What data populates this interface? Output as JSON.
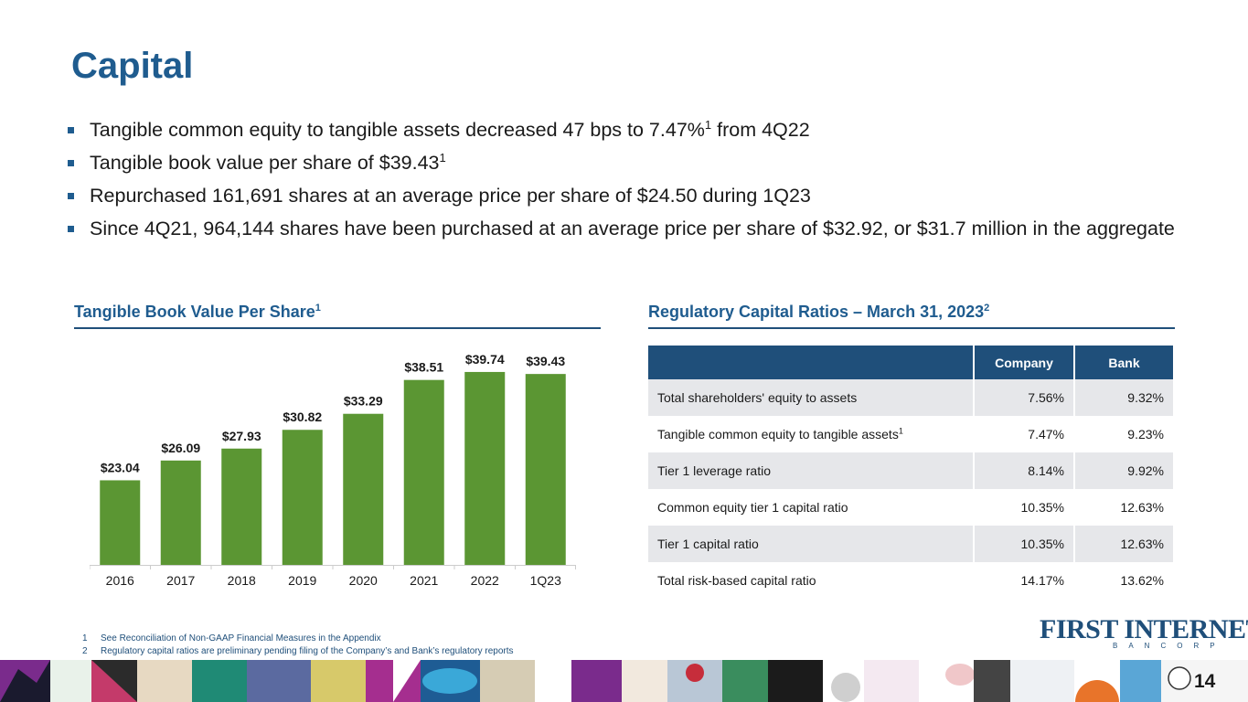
{
  "title": "Capital",
  "bullets": [
    {
      "text": "Tangible common equity to tangible assets decreased 47 bps to 7.47%",
      "sup": "1",
      "after": " from 4Q22"
    },
    {
      "text": "Tangible book value per share of $39.43",
      "sup": "1",
      "after": ""
    },
    {
      "text": "Repurchased 161,691 shares at an average price per share of $24.50 during 1Q23",
      "sup": "",
      "after": ""
    },
    {
      "text": "Since 4Q21, 964,144 shares have been purchased at an average price per share of $32.92, or $31.7 million in the aggregate",
      "sup": "",
      "after": ""
    }
  ],
  "tbv_section": {
    "title": "Tangible Book Value Per Share",
    "sup": "1"
  },
  "reg_section": {
    "title": "Regulatory Capital Ratios – March 31, 2023",
    "sup": "2"
  },
  "chart_data": {
    "type": "bar",
    "title": "Tangible Book Value Per Share",
    "categories": [
      "2016",
      "2017",
      "2018",
      "2019",
      "2020",
      "2021",
      "2022",
      "1Q23"
    ],
    "values": [
      23.04,
      26.09,
      27.93,
      30.82,
      33.29,
      38.51,
      39.74,
      39.43
    ],
    "value_labels": [
      "$23.04",
      "$26.09",
      "$27.93",
      "$30.82",
      "$33.29",
      "$38.51",
      "$39.74",
      "$39.43"
    ],
    "xlabel": "",
    "ylabel": "",
    "ylim": [
      10,
      41
    ],
    "grid": false,
    "bar_color": "#5b9633"
  },
  "reg_table": {
    "headers": [
      "",
      "Company",
      "Bank"
    ],
    "rows": [
      {
        "label": "Total shareholders' equity to assets",
        "sup": "",
        "company": "7.56%",
        "bank": "9.32%"
      },
      {
        "label": "Tangible common equity to tangible assets",
        "sup": "1",
        "company": "7.47%",
        "bank": "9.23%"
      },
      {
        "label": "Tier 1 leverage ratio",
        "sup": "",
        "company": "8.14%",
        "bank": "9.92%"
      },
      {
        "label": "Common equity tier 1 capital ratio",
        "sup": "",
        "company": "10.35%",
        "bank": "12.63%"
      },
      {
        "label": "Tier 1 capital ratio",
        "sup": "",
        "company": "10.35%",
        "bank": "12.63%"
      },
      {
        "label": "Total risk-based capital ratio",
        "sup": "",
        "company": "14.17%",
        "bank": "13.62%"
      }
    ]
  },
  "footnotes": [
    {
      "num": "1",
      "text": "See Reconciliation of Non-GAAP Financial Measures in the Appendix"
    },
    {
      "num": "2",
      "text": "Regulatory capital ratios are preliminary pending filing of the Company’s and Bank’s regulatory reports"
    }
  ],
  "logo": {
    "main": "FIRST INTERNET",
    "sub": "BANCORP"
  },
  "page_number": "14",
  "colors": {
    "title_blue": "#1f5c8f",
    "header_navy": "#1f4f7a",
    "bar_green": "#5b9633",
    "row_shade": "#e6e7ea"
  }
}
